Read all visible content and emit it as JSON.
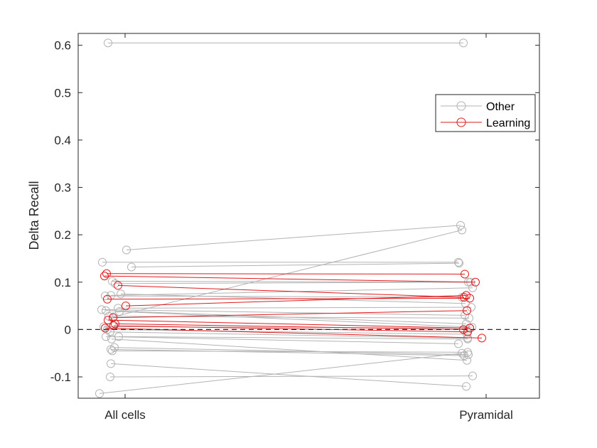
{
  "chart_data": {
    "type": "line",
    "title": "",
    "xlabel": "",
    "ylabel": "Delta Recall",
    "categories": [
      "All cells",
      "Pyramidal"
    ],
    "ylim": [
      -0.145,
      0.625
    ],
    "yticks": [
      -0.1,
      0,
      0.1,
      0.2,
      0.3,
      0.4,
      0.5,
      0.6
    ],
    "ytick_labels": [
      "-0.1",
      "0",
      "0.1",
      "0.2",
      "0.3",
      "0.4",
      "0.5",
      "0.6"
    ],
    "zero_line": true,
    "grid": false,
    "legend": {
      "position": "top-right",
      "entries": [
        {
          "label": "Other",
          "color": "#b3b3b3"
        },
        {
          "label": "Learning",
          "color": "#e31a1c"
        }
      ]
    },
    "colors": {
      "other": "#b3b3b3",
      "learning": "#e31a1c",
      "axis": "#262626"
    },
    "series": [
      {
        "group": "Other",
        "jitter": [
          0.12,
          0.02
        ],
        "values": [
          0.605,
          0.605
        ]
      },
      {
        "group": "Other",
        "jitter": [
          0.04,
          -0.05
        ],
        "values": [
          0.142,
          0.142
        ]
      },
      {
        "group": "Other",
        "jitter": [
          0.38,
          -0.02
        ],
        "values": [
          0.168,
          0.22
        ]
      },
      {
        "group": "Other",
        "jitter": [
          0.45,
          -0.04
        ],
        "values": [
          0.132,
          0.14
        ]
      },
      {
        "group": "Other",
        "jitter": [
          0.18,
          0.09
        ],
        "values": [
          0.102,
          0.1
        ]
      },
      {
        "group": "Other",
        "jitter": [
          0.22,
          0.12
        ],
        "values": [
          0.097,
          0.1
        ]
      },
      {
        "group": "Other",
        "jitter": [
          0.16,
          0.15
        ],
        "values": [
          0.072,
          0.088
        ]
      },
      {
        "group": "Other",
        "jitter": [
          0.3,
          0.05
        ],
        "values": [
          0.075,
          0.055
        ]
      },
      {
        "group": "Other",
        "jitter": [
          0.08,
          0.0
        ],
        "values": [
          0.071,
          0.068
        ]
      },
      {
        "group": "Other",
        "jitter": [
          0.26,
          0.13
        ],
        "values": [
          0.045,
          0.047
        ]
      },
      {
        "group": "Other",
        "jitter": [
          0.2,
          0.0
        ],
        "values": [
          0.027,
          0.21
        ]
      },
      {
        "group": "Other",
        "jitter": [
          0.03,
          0.04
        ],
        "values": [
          0.042,
          0.03
        ]
      },
      {
        "group": "Other",
        "jitter": [
          0.09,
          0.06
        ],
        "values": [
          0.04,
          0.012
        ]
      },
      {
        "group": "Other",
        "jitter": [
          0.28,
          0.14
        ],
        "values": [
          0.038,
          0.005
        ]
      },
      {
        "group": "Other",
        "jitter": [
          0.13,
          0.1
        ],
        "values": [
          0.028,
          0.024
        ]
      },
      {
        "group": "Other",
        "jitter": [
          0.06,
          0.11
        ],
        "values": [
          0.006,
          0.003
        ]
      },
      {
        "group": "Other",
        "jitter": [
          0.11,
          0.07
        ],
        "values": [
          0.0,
          -0.01
        ]
      },
      {
        "group": "Other",
        "jitter": [
          0.15,
          0.08
        ],
        "values": [
          -0.005,
          -0.018
        ]
      },
      {
        "group": "Other",
        "jitter": [
          0.09,
          -0.05
        ],
        "values": [
          -0.015,
          -0.03
        ]
      },
      {
        "group": "Other",
        "jitter": [
          0.27,
          0.08
        ],
        "values": [
          -0.015,
          -0.02
        ]
      },
      {
        "group": "Other",
        "jitter": [
          0.17,
          0.07
        ],
        "values": [
          -0.02,
          -0.065
        ]
      },
      {
        "group": "Other",
        "jitter": [
          0.21,
          0.09
        ],
        "values": [
          -0.038,
          -0.053
        ]
      },
      {
        "group": "Other",
        "jitter": [
          0.18,
          0.08
        ],
        "values": [
          -0.045,
          -0.048
        ]
      },
      {
        "group": "Other",
        "jitter": [
          0.16,
          0.03
        ],
        "values": [
          -0.042,
          -0.055
        ]
      },
      {
        "group": "Other",
        "jitter": [
          0.16,
          0.06
        ],
        "values": [
          -0.072,
          -0.12
        ]
      },
      {
        "group": "Other",
        "jitter": [
          0.15,
          0.15
        ],
        "values": [
          -0.1,
          -0.098
        ]
      },
      {
        "group": "Other",
        "jitter": [
          0.0,
          0.0
        ],
        "values": [
          -0.135,
          -0.05
        ]
      },
      {
        "group": "Learning",
        "jitter": [
          0.1,
          0.04
        ],
        "values": [
          0.118,
          0.117
        ]
      },
      {
        "group": "Learning",
        "jitter": [
          0.07,
          0.19
        ],
        "values": [
          0.113,
          0.1
        ]
      },
      {
        "group": "Learning",
        "jitter": [
          0.26,
          0.03
        ],
        "values": [
          0.093,
          0.068
        ]
      },
      {
        "group": "Learning",
        "jitter": [
          0.11,
          0.11
        ],
        "values": [
          0.064,
          0.066
        ]
      },
      {
        "group": "Learning",
        "jitter": [
          0.37,
          0.06
        ],
        "values": [
          0.05,
          0.072
        ]
      },
      {
        "group": "Learning",
        "jitter": [
          0.19,
          0.07
        ],
        "values": [
          0.025,
          0.04
        ]
      },
      {
        "group": "Learning",
        "jitter": [
          0.12,
          0.11
        ],
        "values": [
          0.02,
          0.003
        ]
      },
      {
        "group": "Learning",
        "jitter": [
          0.22,
          0.02
        ],
        "values": [
          0.012,
          0.0
        ]
      },
      {
        "group": "Learning",
        "jitter": [
          0.2,
          0.08
        ],
        "values": [
          0.008,
          -0.005
        ]
      },
      {
        "group": "Learning",
        "jitter": [
          0.08,
          0.28
        ],
        "values": [
          0.003,
          -0.018
        ]
      }
    ]
  }
}
